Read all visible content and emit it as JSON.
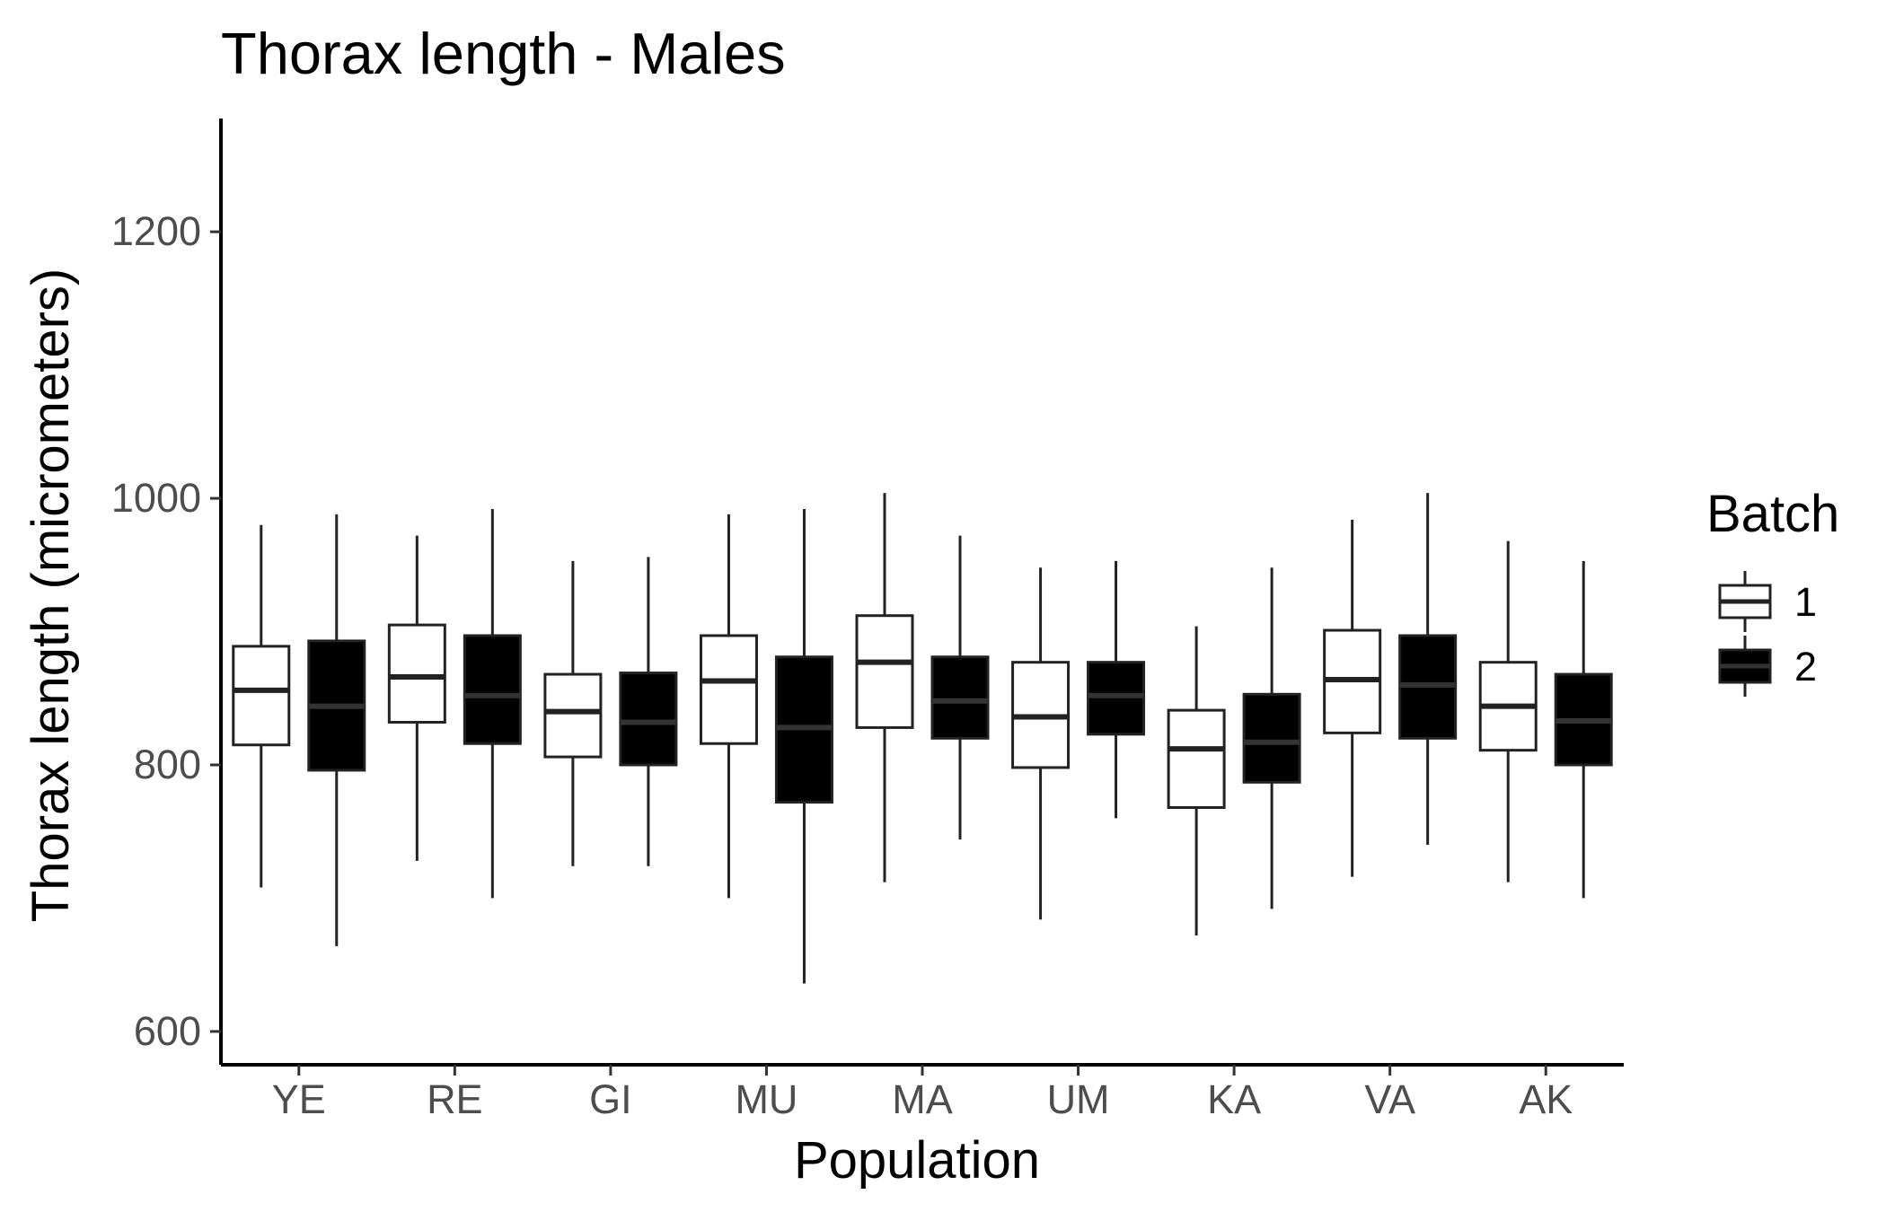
{
  "chart_data": {
    "type": "box",
    "title": "Thorax length - Males",
    "xlabel": "Population",
    "ylabel": "Thorax length (micrometers)",
    "ylim": [
      575,
      1285
    ],
    "yticks": [
      600,
      800,
      1000,
      1200
    ],
    "categories": [
      "YE",
      "RE",
      "GI",
      "MU",
      "MA",
      "UM",
      "KA",
      "VA",
      "AK"
    ],
    "legend": {
      "title": "Batch",
      "position": "right",
      "entries": [
        {
          "label": "1",
          "fill": "#ffffff"
        },
        {
          "label": "2",
          "fill": "#000000"
        }
      ]
    },
    "series": [
      {
        "name": "1",
        "fill": "#ffffff",
        "median_color": "#222222",
        "boxes": [
          {
            "category": "YE",
            "min": 708,
            "q1": 815,
            "median": 856,
            "q3": 889,
            "max": 980
          },
          {
            "category": "RE",
            "min": 728,
            "q1": 832,
            "median": 866,
            "q3": 905,
            "max": 972
          },
          {
            "category": "GI",
            "min": 724,
            "q1": 806,
            "median": 840,
            "q3": 868,
            "max": 953
          },
          {
            "category": "MU",
            "min": 700,
            "q1": 816,
            "median": 863,
            "q3": 897,
            "max": 988
          },
          {
            "category": "MA",
            "min": 712,
            "q1": 828,
            "median": 877,
            "q3": 912,
            "max": 1004
          },
          {
            "category": "UM",
            "min": 684,
            "q1": 798,
            "median": 836,
            "q3": 877,
            "max": 948
          },
          {
            "category": "KA",
            "min": 672,
            "q1": 768,
            "median": 812,
            "q3": 841,
            "max": 904
          },
          {
            "category": "VA",
            "min": 716,
            "q1": 824,
            "median": 864,
            "q3": 901,
            "max": 984
          },
          {
            "category": "AK",
            "min": 712,
            "q1": 811,
            "median": 844,
            "q3": 877,
            "max": 968
          }
        ]
      },
      {
        "name": "2",
        "fill": "#000000",
        "median_color": "#333333",
        "boxes": [
          {
            "category": "YE",
            "min": 664,
            "q1": 796,
            "median": 844,
            "q3": 893,
            "max": 988
          },
          {
            "category": "RE",
            "min": 700,
            "q1": 816,
            "median": 852,
            "q3": 897,
            "max": 992
          },
          {
            "category": "GI",
            "min": 724,
            "q1": 800,
            "median": 832,
            "q3": 869,
            "max": 956
          },
          {
            "category": "MU",
            "min": 636,
            "q1": 772,
            "median": 828,
            "q3": 881,
            "max": 992
          },
          {
            "category": "MA",
            "min": 744,
            "q1": 820,
            "median": 848,
            "q3": 881,
            "max": 972
          },
          {
            "category": "UM",
            "min": 760,
            "q1": 823,
            "median": 852,
            "q3": 877,
            "max": 953
          },
          {
            "category": "KA",
            "min": 692,
            "q1": 787,
            "median": 817,
            "q3": 853,
            "max": 948
          },
          {
            "category": "VA",
            "min": 740,
            "q1": 820,
            "median": 860,
            "q3": 897,
            "max": 1004
          },
          {
            "category": "AK",
            "min": 700,
            "q1": 800,
            "median": 833,
            "q3": 868,
            "max": 953
          }
        ]
      }
    ]
  }
}
